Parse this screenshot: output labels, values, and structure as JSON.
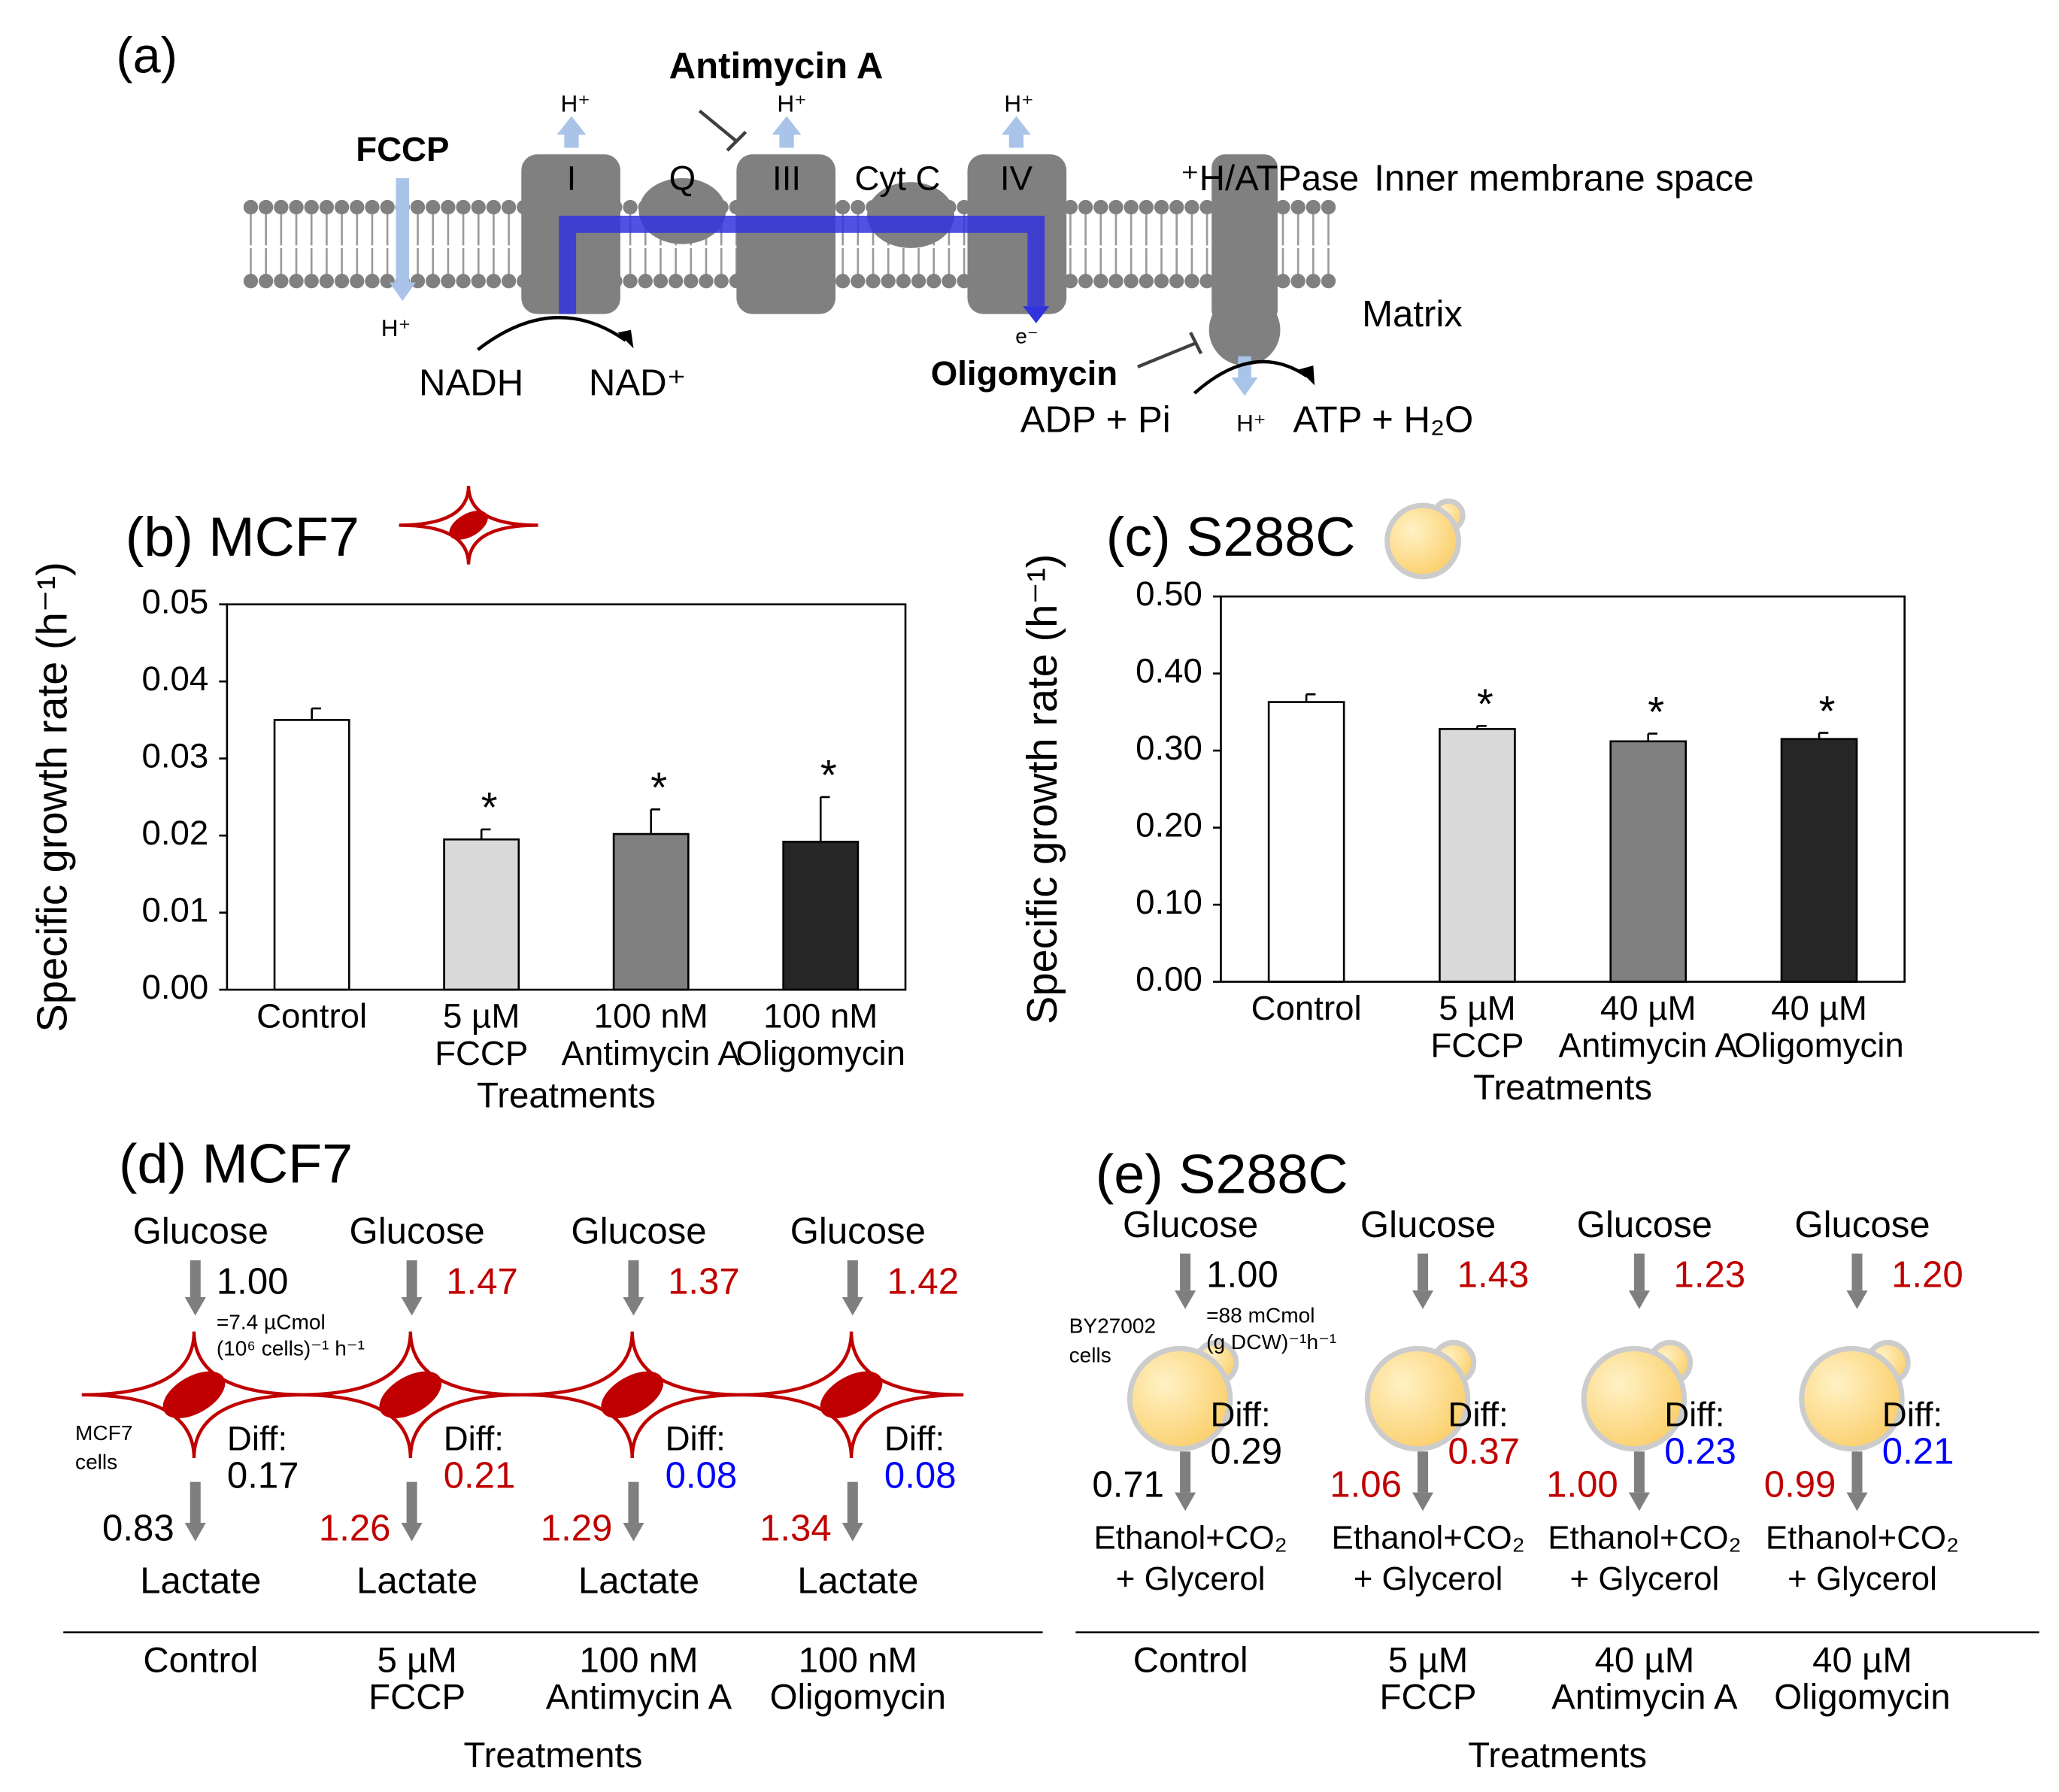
{
  "panel_a": {
    "texts": [
      "(a)",
      "Antimycin A",
      "H⁺",
      "H⁺",
      "H⁺",
      "FCCP",
      "I",
      "Q",
      "III",
      "Cyt C",
      "IV",
      "⁺H/ATPase",
      "Inner membrane space",
      "H⁺",
      "e⁻",
      "Matrix",
      "NADH",
      "NAD⁺",
      "Oligomycin",
      "ADP + Pi",
      "H⁺",
      "ATP + H₂O"
    ]
  },
  "chart_data": [
    {
      "type": "bar",
      "title": "(b) MCF7",
      "x_label": "Treatments",
      "y_label": "Specific growth rate (h⁻¹)",
      "categories": [
        [
          "Control"
        ],
        [
          "5 µM",
          "FCCP"
        ],
        [
          "100 nM",
          "Antimycin A"
        ],
        [
          "100 nM",
          "Oligomycin"
        ]
      ],
      "values": [
        0.035,
        0.0195,
        0.0202,
        0.0192
      ],
      "errors": [
        0.0015,
        0.0013,
        0.0032,
        0.0058
      ],
      "colors": [
        "#ffffff",
        "#d9d9d9",
        "#808080",
        "#262626"
      ],
      "annotations": [
        null,
        "*",
        "*",
        "*"
      ],
      "ylim": [
        0,
        0.05
      ],
      "yticks": [
        {
          "value": 0,
          "label": "0.00"
        },
        {
          "value": 0.01,
          "label": "0.01"
        },
        {
          "value": 0.02,
          "label": "0.02"
        },
        {
          "value": 0.03,
          "label": "0.03"
        },
        {
          "value": 0.04,
          "label": "0.04"
        },
        {
          "value": 0.05,
          "label": "0.05"
        }
      ]
    },
    {
      "type": "bar",
      "title": "(c) S288C",
      "x_label": "Treatments",
      "y_label": "Specific growth rate (h⁻¹)",
      "categories": [
        [
          "Control"
        ],
        [
          "5 µM",
          "FCCP"
        ],
        [
          "40 µM",
          "Antimycin A"
        ],
        [
          "40 µM",
          "Oligomycin"
        ]
      ],
      "values": [
        0.363,
        0.328,
        0.312,
        0.315
      ],
      "errors": [
        0.01,
        0.004,
        0.01,
        0.008
      ],
      "colors": [
        "#ffffff",
        "#d9d9d9",
        "#808080",
        "#262626"
      ],
      "annotations": [
        null,
        "*",
        "*",
        "*"
      ],
      "ylim": [
        0,
        0.5
      ],
      "yticks": [
        {
          "value": 0,
          "label": "0.00"
        },
        {
          "value": 0.1,
          "label": "0.10"
        },
        {
          "value": 0.2,
          "label": "0.20"
        },
        {
          "value": 0.3,
          "label": "0.30"
        },
        {
          "value": 0.4,
          "label": "0.40"
        },
        {
          "value": 0.5,
          "label": "0.50"
        }
      ]
    }
  ],
  "panel_d": {
    "title": "(d) MCF7",
    "axis_label": "Treatments",
    "columns": [
      {
        "substrate": "Glucose",
        "uptake": "1.00",
        "uptake_color": "#000000",
        "note": [
          "=7.4 µCmol",
          "(10⁶ cells)⁻¹ h⁻¹"
        ],
        "cell_label": [
          "MCF7",
          "cells"
        ],
        "diff_label": "Diff:",
        "diff": "0.17",
        "diff_color": "#000000",
        "product_flux": "0.83",
        "product_flux_color": "#000000",
        "product": [
          "Lactate"
        ],
        "treatment": [
          "Control"
        ]
      },
      {
        "substrate": "Glucose",
        "uptake": "1.47",
        "uptake_color": "#c00000",
        "diff_label": "Diff:",
        "diff": "0.21",
        "diff_color": "#c00000",
        "product_flux": "1.26",
        "product_flux_color": "#c00000",
        "product": [
          "Lactate"
        ],
        "treatment": [
          "5 µM",
          "FCCP"
        ]
      },
      {
        "substrate": "Glucose",
        "uptake": "1.37",
        "uptake_color": "#c00000",
        "diff_label": "Diff:",
        "diff": "0.08",
        "diff_color": "#0000ff",
        "product_flux": "1.29",
        "product_flux_color": "#c00000",
        "product": [
          "Lactate"
        ],
        "treatment": [
          "100 nM",
          "Antimycin A"
        ]
      },
      {
        "substrate": "Glucose",
        "uptake": "1.42",
        "uptake_color": "#c00000",
        "diff_label": "Diff:",
        "diff": "0.08",
        "diff_color": "#0000ff",
        "product_flux": "1.34",
        "product_flux_color": "#c00000",
        "product": [
          "Lactate"
        ],
        "treatment": [
          "100 nM",
          "Oligomycin"
        ]
      }
    ]
  },
  "panel_e": {
    "title": "(e) S288C",
    "axis_label": "Treatments",
    "columns": [
      {
        "substrate": "Glucose",
        "uptake": "1.00",
        "uptake_color": "#000000",
        "note": [
          "=88 mCmol",
          "(g DCW)⁻¹h⁻¹"
        ],
        "cell_label": [
          "BY27002",
          "cells"
        ],
        "diff_label": "Diff:",
        "diff": "0.29",
        "diff_color": "#000000",
        "product_flux": "0.71",
        "product_flux_color": "#000000",
        "product": [
          "Ethanol+CO₂",
          "+ Glycerol"
        ],
        "treatment": [
          "Control"
        ]
      },
      {
        "substrate": "Glucose",
        "uptake": "1.43",
        "uptake_color": "#c00000",
        "diff_label": "Diff:",
        "diff": "0.37",
        "diff_color": "#c00000",
        "product_flux": "1.06",
        "product_flux_color": "#c00000",
        "product": [
          "Ethanol+CO₂",
          "+ Glycerol"
        ],
        "treatment": [
          "5 µM",
          "FCCP"
        ]
      },
      {
        "substrate": "Glucose",
        "uptake": "1.23",
        "uptake_color": "#c00000",
        "diff_label": "Diff:",
        "diff": "0.23",
        "diff_color": "#0000ff",
        "product_flux": "1.00",
        "product_flux_color": "#c00000",
        "product": [
          "Ethanol+CO₂",
          "+ Glycerol"
        ],
        "treatment": [
          "40 µM",
          "Antimycin A"
        ]
      },
      {
        "substrate": "Glucose",
        "uptake": "1.20",
        "uptake_color": "#c00000",
        "diff_label": "Diff:",
        "diff": "0.21",
        "diff_color": "#0000ff",
        "product_flux": "0.99",
        "product_flux_color": "#c00000",
        "product": [
          "Ethanol+CO₂",
          "+ Glycerol"
        ],
        "treatment": [
          "40 µM",
          "Oligomycin"
        ]
      }
    ]
  }
}
